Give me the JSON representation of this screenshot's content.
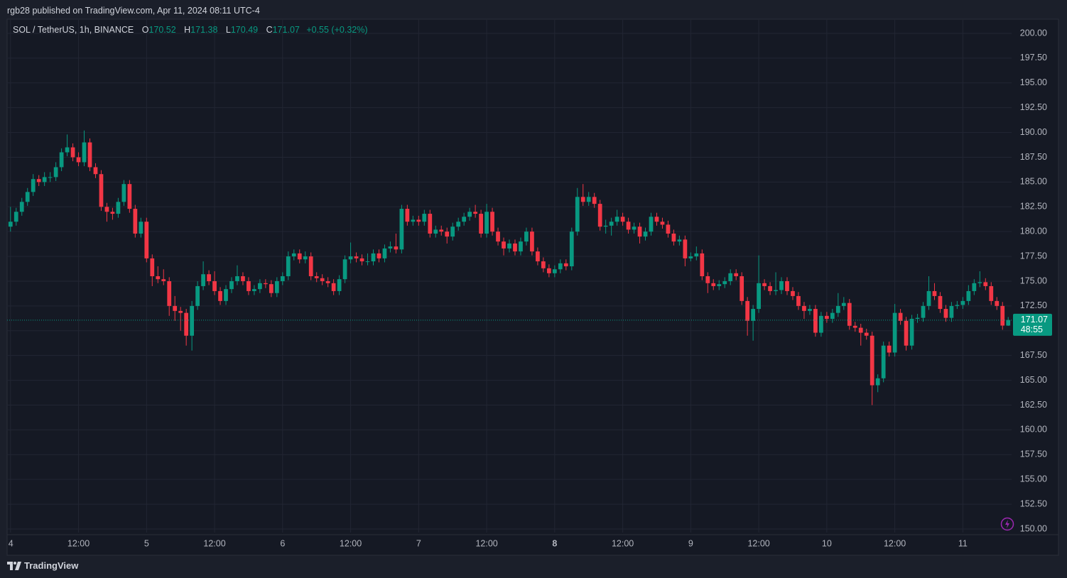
{
  "header": {
    "publisher": "rgb28 published on TradingView.com, Apr 11, 2024 08:11 UTC-4"
  },
  "footer": {
    "brand": "TradingView"
  },
  "chart_data": {
    "type": "candlestick",
    "title": "SOL / TetherUS, 1h, BINANCE",
    "ohlc_labels": [
      "O",
      "H",
      "L",
      "C"
    ],
    "change": "+0.55 (+0.32%)",
    "countdown": "48:55",
    "up_color": "#089981",
    "down_color": "#f23645",
    "grid": true,
    "xlim": [
      -0.6,
      176.6
    ],
    "ylim": [
      149.64,
      201.36
    ],
    "xticks": [
      {
        "value": 0,
        "label": "4"
      },
      {
        "value": 12,
        "label": "12:00"
      },
      {
        "value": 24,
        "label": "5"
      },
      {
        "value": 36,
        "label": "12:00"
      },
      {
        "value": 48,
        "label": "6"
      },
      {
        "value": 60,
        "label": "12:00"
      },
      {
        "value": 72,
        "label": "7"
      },
      {
        "value": 84,
        "label": "12:00"
      },
      {
        "value": 96,
        "label": "8"
      },
      {
        "value": 108,
        "label": "12:00"
      },
      {
        "value": 120,
        "label": "9"
      },
      {
        "value": 132,
        "label": "12:00"
      },
      {
        "value": 144,
        "label": "10"
      },
      {
        "value": 156,
        "label": "12:00"
      },
      {
        "value": 168,
        "label": "11"
      }
    ],
    "yticks": [
      {
        "value": 150,
        "label": "150.00"
      },
      {
        "value": 152.5,
        "label": "152.50"
      },
      {
        "value": 155,
        "label": "155.00"
      },
      {
        "value": 157.5,
        "label": "157.50"
      },
      {
        "value": 160,
        "label": "160.00"
      },
      {
        "value": 162.5,
        "label": "162.50"
      },
      {
        "value": 165,
        "label": "165.00"
      },
      {
        "value": 167.5,
        "label": "167.50"
      },
      {
        "value": 170,
        "label": "170.00"
      },
      {
        "value": 172.5,
        "label": "172.50"
      },
      {
        "value": 175,
        "label": "175.00"
      },
      {
        "value": 177.5,
        "label": "177.50"
      },
      {
        "value": 180,
        "label": "180.00"
      },
      {
        "value": 182.5,
        "label": "182.50"
      },
      {
        "value": 185,
        "label": "185.00"
      },
      {
        "value": 187.5,
        "label": "187.50"
      },
      {
        "value": 190,
        "label": "190.00"
      },
      {
        "value": 192.5,
        "label": "192.50"
      },
      {
        "value": 195,
        "label": "195.00"
      },
      {
        "value": 197.5,
        "label": "197.50"
      },
      {
        "value": 200,
        "label": "200.00"
      }
    ],
    "ohlc": [
      [
        180.5,
        182.5,
        180,
        181
      ],
      [
        181,
        182.4,
        180.6,
        182
      ],
      [
        182,
        183.4,
        181.6,
        183
      ],
      [
        183,
        184.4,
        182.6,
        184
      ],
      [
        184,
        185.8,
        183.6,
        185.3
      ],
      [
        185.3,
        185.7,
        184.6,
        185
      ],
      [
        185,
        186,
        184.6,
        185.5
      ],
      [
        185.5,
        186,
        185,
        185.5
      ],
      [
        185.5,
        187,
        185.1,
        186.5
      ],
      [
        186.5,
        188.4,
        186.1,
        188
      ],
      [
        188,
        189.8,
        187.6,
        188.5
      ],
      [
        188.5,
        188.9,
        187.1,
        187.5
      ],
      [
        187.5,
        188,
        186.6,
        187
      ],
      [
        187,
        190.2,
        186.6,
        189
      ],
      [
        189,
        189.4,
        186.1,
        186.5
      ],
      [
        186.5,
        186.9,
        185.4,
        185.8
      ],
      [
        185.8,
        186.2,
        182.1,
        182.5
      ],
      [
        182.5,
        182.9,
        181,
        182
      ],
      [
        182,
        182.4,
        181.2,
        181.8
      ],
      [
        181.8,
        183.4,
        181.4,
        183
      ],
      [
        183,
        185.2,
        182.6,
        184.8
      ],
      [
        184.8,
        185.2,
        181.9,
        182.3
      ],
      [
        182.3,
        182.7,
        179.4,
        179.8
      ],
      [
        179.8,
        181.4,
        179.4,
        181
      ],
      [
        181,
        181.4,
        176.9,
        177.3
      ],
      [
        177.3,
        177.7,
        174.5,
        175.5
      ],
      [
        175.5,
        176.5,
        174.8,
        175.2
      ],
      [
        175.2,
        176.2,
        174.6,
        175
      ],
      [
        175,
        175.4,
        171.5,
        172.5
      ],
      [
        172.5,
        173.5,
        171,
        172
      ],
      [
        172,
        172.4,
        170,
        171.8
      ],
      [
        171.8,
        172.2,
        168.5,
        169.5
      ],
      [
        169.5,
        173,
        168,
        172.5
      ],
      [
        172.5,
        175,
        172.1,
        174.5
      ],
      [
        174.5,
        177,
        174.1,
        175.7
      ],
      [
        175.7,
        176.1,
        174.6,
        175
      ],
      [
        175,
        176,
        173.6,
        174
      ],
      [
        174,
        174.4,
        172.6,
        173
      ],
      [
        173,
        174.6,
        172.6,
        174.2
      ],
      [
        174.2,
        175.4,
        173.8,
        175
      ],
      [
        175,
        176.6,
        174.6,
        175.5
      ],
      [
        175.5,
        175.9,
        174.6,
        175
      ],
      [
        175,
        175.4,
        173.6,
        174
      ],
      [
        174,
        174.6,
        173.6,
        174.2
      ],
      [
        174.2,
        175.2,
        173.8,
        174.8
      ],
      [
        174.8,
        175.2,
        174.3,
        174.7
      ],
      [
        174.7,
        175.1,
        173.4,
        173.8
      ],
      [
        173.8,
        175.4,
        173.4,
        175
      ],
      [
        175,
        175.9,
        174.6,
        175.5
      ],
      [
        175.5,
        178,
        175.1,
        177.5
      ],
      [
        177.5,
        178.2,
        177.1,
        177.8
      ],
      [
        177.8,
        178.2,
        176.8,
        177.2
      ],
      [
        177.2,
        178,
        176.8,
        177.5
      ],
      [
        177.5,
        177.9,
        175.1,
        175.5
      ],
      [
        175.5,
        175.9,
        174.9,
        175.3
      ],
      [
        175.3,
        175.7,
        174.6,
        175
      ],
      [
        175,
        175.4,
        174.4,
        174.8
      ],
      [
        174.8,
        175.2,
        173.6,
        174
      ],
      [
        174,
        175.6,
        173.6,
        175.2
      ],
      [
        175.2,
        177.6,
        174.8,
        177.2
      ],
      [
        177.2,
        178.9,
        176.8,
        177.5
      ],
      [
        177.5,
        177.9,
        176.9,
        177.3
      ],
      [
        177.3,
        177.7,
        176.6,
        177
      ],
      [
        177,
        177.8,
        176.6,
        177
      ],
      [
        177,
        178.2,
        176.6,
        177.8
      ],
      [
        177.8,
        178.2,
        176.9,
        177.3
      ],
      [
        177.3,
        178.7,
        176.9,
        178.3
      ],
      [
        178.3,
        179,
        177.9,
        178.5
      ],
      [
        178.5,
        179.8,
        177.8,
        178.2
      ],
      [
        178.2,
        182.7,
        177.8,
        182.3
      ],
      [
        182.3,
        182.7,
        180.6,
        181
      ],
      [
        181,
        181.6,
        180.6,
        181.2
      ],
      [
        181.2,
        181.6,
        180.6,
        181
      ],
      [
        181,
        182.2,
        180.6,
        181.8
      ],
      [
        181.8,
        182.2,
        179.4,
        179.8
      ],
      [
        179.8,
        180.6,
        179.4,
        180.2
      ],
      [
        180.2,
        180.6,
        179.6,
        180
      ],
      [
        180,
        180.4,
        178.8,
        179.5
      ],
      [
        179.5,
        180.9,
        179.1,
        180.5
      ],
      [
        180.5,
        181.4,
        180.1,
        181
      ],
      [
        181,
        181.9,
        180.6,
        181.5
      ],
      [
        181.5,
        182.4,
        181.1,
        182
      ],
      [
        182,
        182.7,
        181.4,
        181.8
      ],
      [
        181.8,
        182.2,
        179.4,
        179.8
      ],
      [
        179.8,
        182.8,
        179.4,
        182
      ],
      [
        182,
        182.4,
        179.6,
        180
      ],
      [
        180,
        180.4,
        178.6,
        179
      ],
      [
        179,
        179.4,
        177.6,
        178.3
      ],
      [
        178.3,
        179.2,
        177.9,
        178.8
      ],
      [
        178.8,
        179.2,
        177.6,
        178
      ],
      [
        178,
        179.4,
        177.6,
        179
      ],
      [
        179,
        180.4,
        178.6,
        180
      ],
      [
        180,
        180.4,
        177.6,
        178
      ],
      [
        178,
        178.4,
        176.6,
        177
      ],
      [
        177,
        177.4,
        175.9,
        176.3
      ],
      [
        176.3,
        176.7,
        175.4,
        175.8
      ],
      [
        175.8,
        176.6,
        175.4,
        176.2
      ],
      [
        176.2,
        177.2,
        175.8,
        176.8
      ],
      [
        176.8,
        177.2,
        176.1,
        176.5
      ],
      [
        176.5,
        180.4,
        176.1,
        180
      ],
      [
        180,
        184.4,
        179.6,
        183.5
      ],
      [
        183.5,
        184.8,
        182.6,
        183
      ],
      [
        183,
        184,
        182.6,
        183.5
      ],
      [
        183.5,
        183.9,
        182.4,
        182.8
      ],
      [
        182.8,
        183.2,
        180.1,
        180.5
      ],
      [
        180.5,
        181.2,
        179.8,
        180.6
      ],
      [
        180.6,
        181.4,
        179.6,
        181
      ],
      [
        181,
        182.2,
        180.6,
        181.5
      ],
      [
        181.5,
        181.9,
        180.6,
        181
      ],
      [
        181,
        181.4,
        179.8,
        180.2
      ],
      [
        180.2,
        180.9,
        179.8,
        180.5
      ],
      [
        180.5,
        180.9,
        178.8,
        179.5
      ],
      [
        179.5,
        180.4,
        179.1,
        180
      ],
      [
        180,
        181.9,
        179.6,
        181.5
      ],
      [
        181.5,
        181.9,
        180.6,
        181
      ],
      [
        181,
        181.4,
        180.3,
        180.7
      ],
      [
        180.7,
        181.1,
        179.4,
        179.8
      ],
      [
        179.8,
        180.2,
        178.6,
        179
      ],
      [
        179,
        179.6,
        178.6,
        179.2
      ],
      [
        179.2,
        179.6,
        176.5,
        177.3
      ],
      [
        177.3,
        177.9,
        177,
        177.5
      ],
      [
        177.5,
        178.5,
        177.1,
        177.8
      ],
      [
        177.8,
        178.2,
        175.1,
        175.5
      ],
      [
        175.5,
        175.9,
        173.8,
        174.8
      ],
      [
        174.8,
        175.2,
        174.1,
        174.5
      ],
      [
        174.5,
        175.1,
        174.1,
        174.7
      ],
      [
        174.7,
        175.4,
        174.3,
        175
      ],
      [
        175,
        176.2,
        174.6,
        175.8
      ],
      [
        175.8,
        176.2,
        175.1,
        175.5
      ],
      [
        175.5,
        175.9,
        172.6,
        173
      ],
      [
        173,
        173.4,
        169.5,
        171
      ],
      [
        171,
        172.6,
        169,
        172.2
      ],
      [
        172.2,
        177.6,
        171.8,
        174.8
      ],
      [
        174.8,
        175.2,
        174.1,
        174.5
      ],
      [
        174.5,
        174.9,
        173.6,
        174
      ],
      [
        174,
        175.9,
        173.6,
        174.1
      ],
      [
        174.1,
        175.4,
        173.7,
        175
      ],
      [
        175,
        175.4,
        173.6,
        174
      ],
      [
        174,
        174.4,
        173.1,
        173.5
      ],
      [
        173.5,
        173.9,
        172.1,
        172.5
      ],
      [
        172.5,
        172.9,
        171.2,
        172
      ],
      [
        172,
        172.6,
        171.6,
        172.2
      ],
      [
        172.2,
        172.6,
        169.4,
        169.8
      ],
      [
        169.8,
        171.9,
        169.4,
        171.5
      ],
      [
        171.5,
        171.9,
        170.8,
        171.2
      ],
      [
        171.2,
        172.2,
        170.8,
        171.8
      ],
      [
        171.8,
        173.8,
        171.4,
        172.5
      ],
      [
        172.5,
        173.4,
        172.1,
        172.8
      ],
      [
        172.8,
        173.2,
        170.1,
        170.5
      ],
      [
        170.5,
        170.9,
        169.9,
        170.3
      ],
      [
        170.3,
        170.7,
        168.5,
        169.8
      ],
      [
        169.8,
        170.2,
        169.1,
        169.5
      ],
      [
        169.5,
        169.9,
        162.5,
        164.5
      ],
      [
        164.5,
        165.6,
        163.8,
        165.2
      ],
      [
        165.2,
        168.9,
        164.8,
        168.5
      ],
      [
        168.5,
        168.9,
        167.4,
        167.8
      ],
      [
        167.8,
        172.7,
        167.4,
        171.8
      ],
      [
        171.8,
        172.2,
        170.6,
        171
      ],
      [
        171,
        171.4,
        168,
        168.5
      ],
      [
        168.5,
        171.6,
        168.1,
        171.2
      ],
      [
        171.2,
        171.7,
        170.8,
        171.3
      ],
      [
        171.3,
        172.9,
        170.9,
        172.5
      ],
      [
        172.5,
        175.5,
        172.1,
        174
      ],
      [
        174,
        174.8,
        173.1,
        173.5
      ],
      [
        173.5,
        173.9,
        171.8,
        172.2
      ],
      [
        172.2,
        172.6,
        170.9,
        171.3
      ],
      [
        171.3,
        172.9,
        170.9,
        172.5
      ],
      [
        172.5,
        173,
        172.2,
        172.6
      ],
      [
        172.6,
        173.4,
        172.2,
        173
      ],
      [
        173,
        174.6,
        172.6,
        174
      ],
      [
        174,
        175.2,
        173.6,
        174.8
      ],
      [
        174.8,
        176,
        174.4,
        174.9
      ],
      [
        174.9,
        175.3,
        174.1,
        174.5
      ],
      [
        174.5,
        174.9,
        172.6,
        173
      ],
      [
        173,
        173.4,
        172.1,
        172.5
      ],
      [
        172.5,
        172.9,
        170.1,
        170.52
      ],
      [
        170.52,
        171.38,
        170.49,
        171.07
      ]
    ]
  }
}
